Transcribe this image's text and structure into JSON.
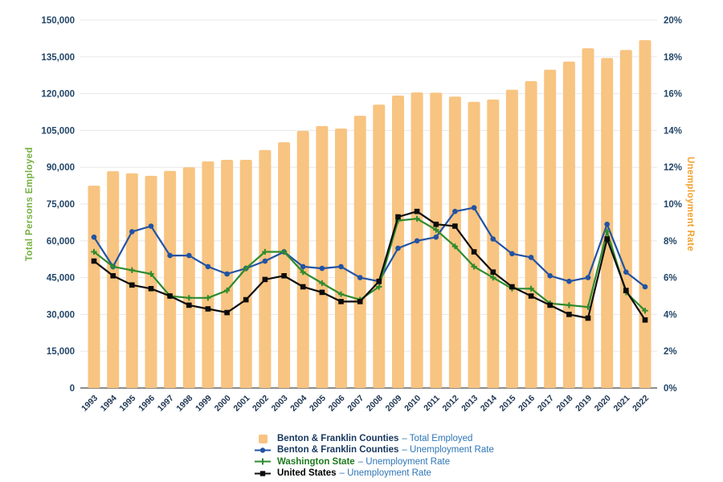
{
  "colors": {
    "bar": "#F8C481",
    "benton_franklin_line": "#2253A4",
    "washington_line": "#2E8B2E",
    "us_line": "#0D0D0D",
    "axis_tick_text": "#234668",
    "x_axis_label_text": "#1C3350",
    "legend_name_text": "#17375E",
    "legend_suffix_text": "#2E75B6",
    "washington_legend_text": "#1E7A1E",
    "us_legend_text": "#000000",
    "left_axis_title": "#76B041",
    "right_axis_title": "#F2A230",
    "gridline": "#E8E8E8",
    "axis_line": "#8C8C8C"
  },
  "legend": {
    "items": [
      {
        "marker": "bar-swatch",
        "name": "Benton & Franklin Counties",
        "suffix": "– Total Employed"
      },
      {
        "marker": "blue-line",
        "name": "Benton & Franklin Counties",
        "suffix": "– Unemployment Rate"
      },
      {
        "marker": "green-line",
        "name": "Washington State",
        "suffix": "– Unemployment Rate"
      },
      {
        "marker": "black-line",
        "name": "United States",
        "suffix": "– Unemployment Rate"
      }
    ]
  },
  "chart_data": {
    "type": "combo-bar-line",
    "grid": "horizontal",
    "legend_position": "bottom",
    "categories": [
      "1993",
      "1994",
      "1995",
      "1996",
      "1997",
      "1998",
      "1999",
      "2000",
      "2001",
      "2002",
      "2003",
      "2004",
      "2005",
      "2006",
      "2007",
      "2008",
      "2009",
      "2010",
      "2011",
      "2012",
      "2013",
      "2014",
      "2015",
      "2016",
      "2017",
      "2018",
      "2019",
      "2020",
      "2021",
      "2022"
    ],
    "left_axis": {
      "title": "Total Persons Employed",
      "range": [
        0,
        150000
      ],
      "tick_labels": [
        "150,000",
        "135,000",
        "120,000",
        "105,000",
        "90,000",
        "75,000",
        "60,000",
        "45,000",
        "30,000",
        "15,000",
        "0"
      ]
    },
    "right_axis": {
      "title": "Unemployment Rate",
      "range": [
        0,
        20
      ],
      "tick_labels": [
        "20%",
        "18%",
        "16%",
        "14%",
        "12%",
        "10%",
        "8%",
        "6%",
        "4%",
        "2%",
        "0%"
      ]
    },
    "bar_series": {
      "id": "benton-franklin-total-employed",
      "name": "Benton & Franklin Counties – Total Employed",
      "axis": "left",
      "color_key": "bar",
      "values": [
        82500,
        88400,
        87500,
        86500,
        88500,
        90000,
        92400,
        93000,
        93000,
        97000,
        100200,
        104800,
        106800,
        105800,
        111000,
        115500,
        119200,
        120500,
        120400,
        118800,
        116700,
        117600,
        121600,
        125100,
        129800,
        133100,
        138500,
        134500,
        137800,
        141800
      ]
    },
    "line_series": [
      {
        "id": "benton-franklin-unemployment",
        "name": "Benton & Franklin Counties – Unemployment Rate",
        "axis": "right",
        "marker": "circle",
        "color_key": "benton_franklin_line",
        "values": [
          8.2,
          6.6,
          8.5,
          8.8,
          7.2,
          7.2,
          6.6,
          6.2,
          6.5,
          6.9,
          7.4,
          6.6,
          6.5,
          6.6,
          6.0,
          5.8,
          7.6,
          8.0,
          8.2,
          9.6,
          9.8,
          8.1,
          7.3,
          7.1,
          6.1,
          5.8,
          6.0,
          8.9,
          6.3,
          5.5
        ]
      },
      {
        "id": "washington-state-unemployment",
        "name": "Washington State – Unemployment Rate",
        "axis": "right",
        "marker": "plus",
        "color_key": "washington_line",
        "values": [
          7.4,
          6.6,
          6.4,
          6.2,
          5.0,
          4.9,
          4.9,
          5.3,
          6.5,
          7.4,
          7.4,
          6.3,
          5.7,
          5.1,
          4.8,
          5.5,
          9.1,
          9.2,
          8.6,
          7.7,
          6.6,
          6.0,
          5.4,
          5.4,
          4.6,
          4.5,
          4.4,
          8.5,
          5.2,
          4.2
        ]
      },
      {
        "id": "united-states-unemployment",
        "name": "United States – Unemployment Rate",
        "axis": "right",
        "marker": "square",
        "color_key": "us_line",
        "values": [
          6.9,
          6.1,
          5.6,
          5.4,
          5.0,
          4.5,
          4.3,
          4.1,
          4.8,
          5.9,
          6.1,
          5.5,
          5.2,
          4.7,
          4.7,
          5.8,
          9.3,
          9.6,
          8.9,
          8.8,
          7.4,
          6.3,
          5.5,
          5.0,
          4.5,
          4.0,
          3.8,
          8.1,
          5.3,
          3.7
        ]
      }
    ]
  }
}
